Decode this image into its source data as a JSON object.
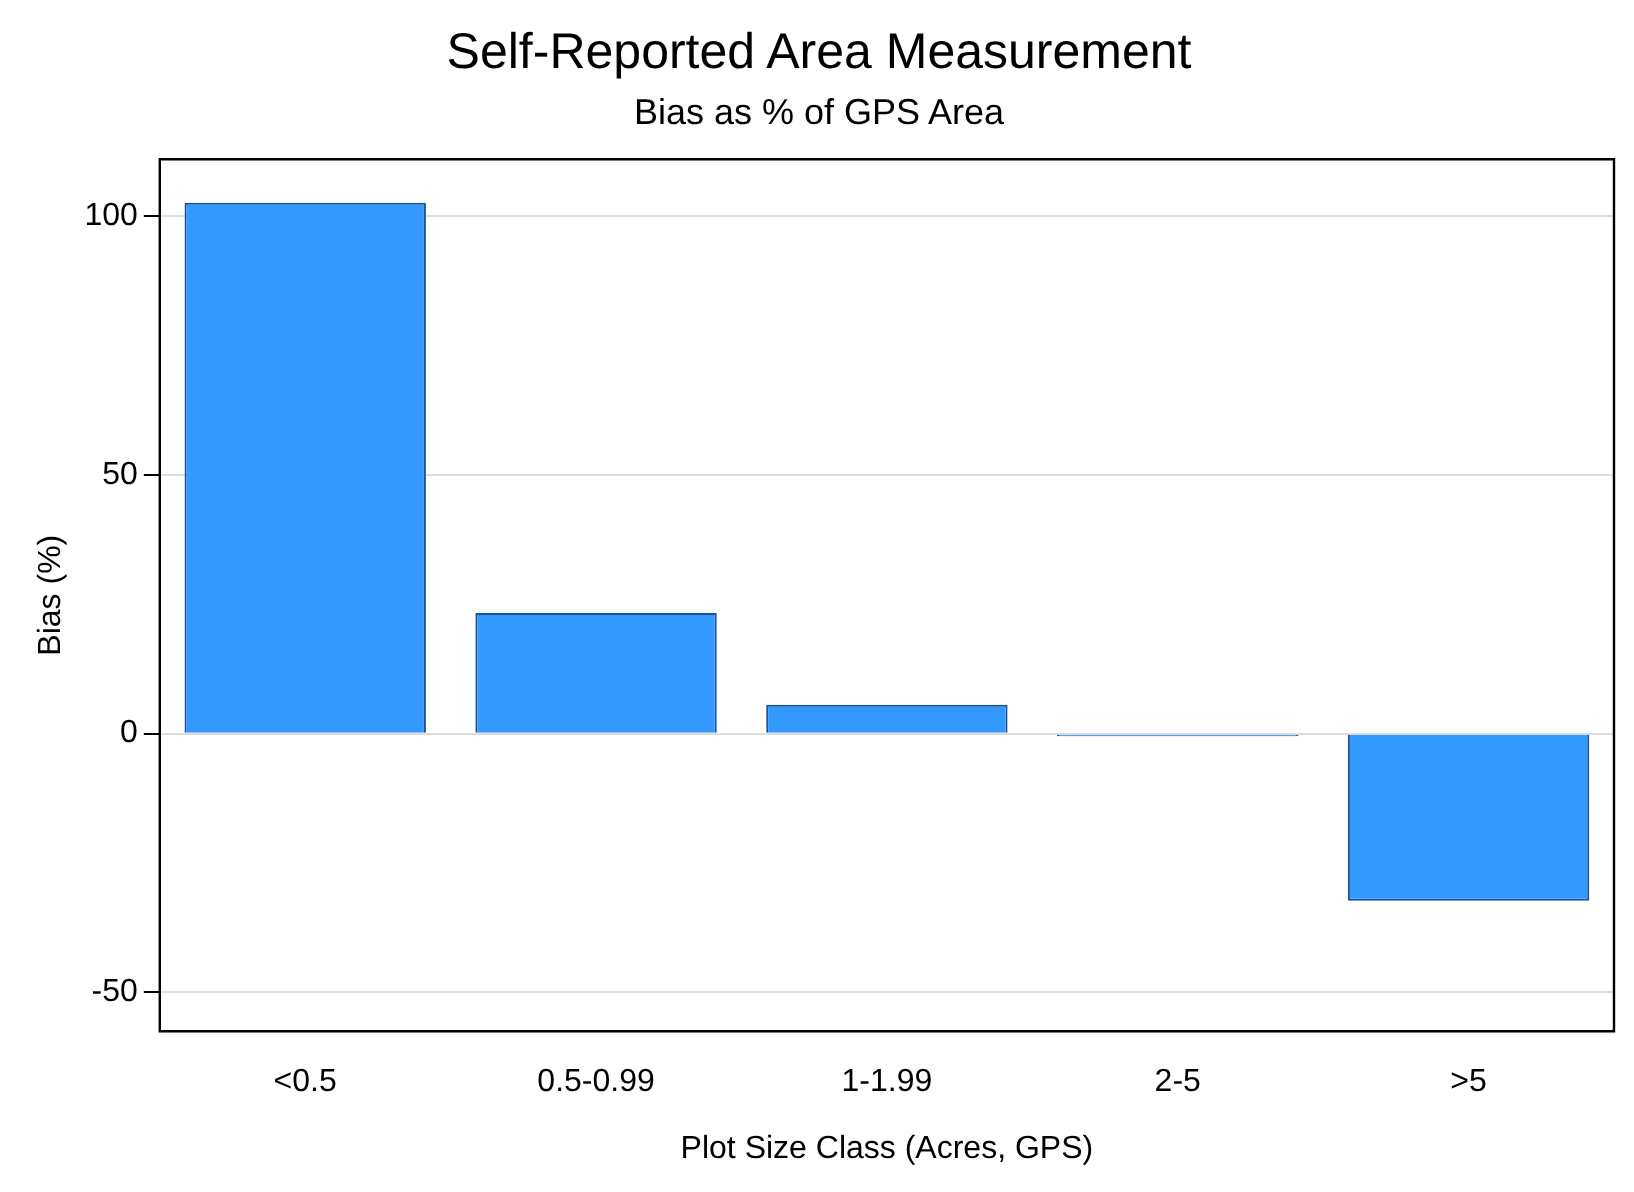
{
  "chart_data": {
    "type": "bar",
    "title": "Self-Reported Area Measurement",
    "subtitle": "Bias as % of GPS Area",
    "xlabel": "Plot Size Class (Acres, GPS)",
    "ylabel": "Bias (%)",
    "categories": [
      "<0.5",
      "0.5-0.99",
      "1-1.99",
      "2-5",
      ">5"
    ],
    "values": [
      102.6,
      23.3,
      5.6,
      -0.5,
      -32.3
    ],
    "color": "#3399ff",
    "ylim": [
      -57.5,
      111
    ],
    "yticks": [
      -50,
      0,
      50,
      100
    ],
    "grid": "y"
  }
}
